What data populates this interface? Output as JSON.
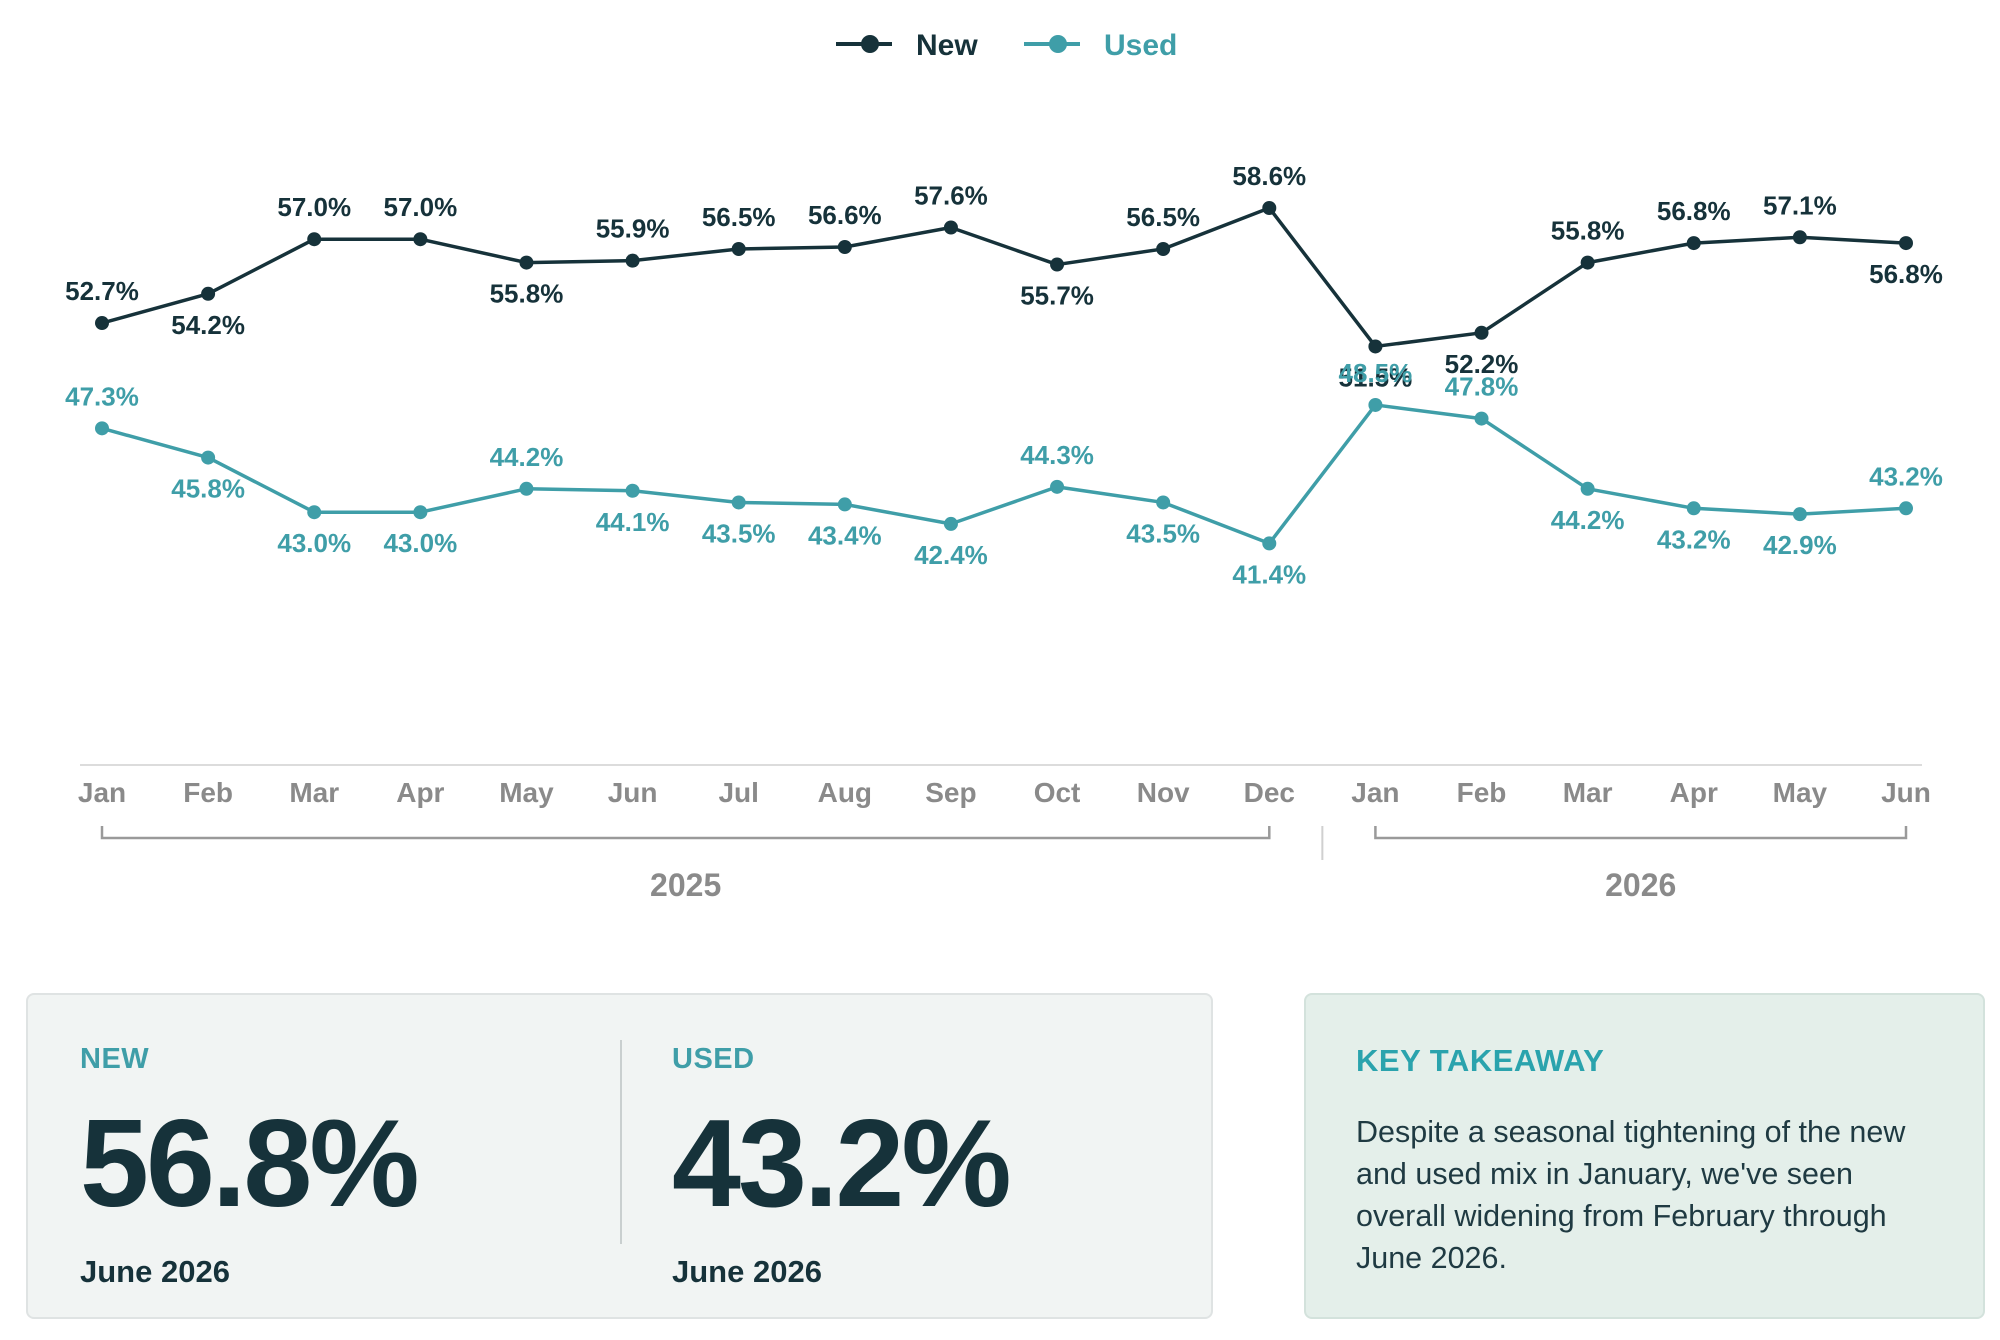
{
  "chart_data": {
    "type": "line",
    "categories": [
      "Jan",
      "Feb",
      "Mar",
      "Apr",
      "May",
      "Jun",
      "Jul",
      "Aug",
      "Sep",
      "Oct",
      "Nov",
      "Dec",
      "Jan",
      "Feb",
      "Mar",
      "Apr",
      "May",
      "Jun"
    ],
    "year_groups": [
      {
        "label": "2025",
        "start": 0,
        "end": 11
      },
      {
        "label": "2026",
        "start": 12,
        "end": 17
      }
    ],
    "series": [
      {
        "name": "New",
        "color": "#16323a",
        "values": [
          52.7,
          54.2,
          57.0,
          57.0,
          55.8,
          55.9,
          56.5,
          56.6,
          57.6,
          55.7,
          56.5,
          58.6,
          51.5,
          52.2,
          55.8,
          56.8,
          57.1,
          56.8
        ]
      },
      {
        "name": "Used",
        "color": "#3f9ea8",
        "values": [
          47.3,
          45.8,
          43.0,
          43.0,
          44.2,
          44.1,
          43.5,
          43.4,
          42.4,
          44.3,
          43.5,
          41.4,
          48.5,
          47.8,
          44.2,
          43.2,
          42.9,
          43.2
        ]
      }
    ],
    "value_suffix": "%",
    "legend_position": "top-center",
    "grid": false
  },
  "stats": {
    "new": {
      "label": "NEW",
      "value": "56.8%",
      "date": "June 2026"
    },
    "used": {
      "label": "USED",
      "value": "43.2%",
      "date": "June 2026"
    }
  },
  "takeaway": {
    "title": "KEY TAKEAWAY",
    "text": "Despite a seasonal tightening of the new and used mix in January, we've seen overall widening from February through June 2026."
  }
}
